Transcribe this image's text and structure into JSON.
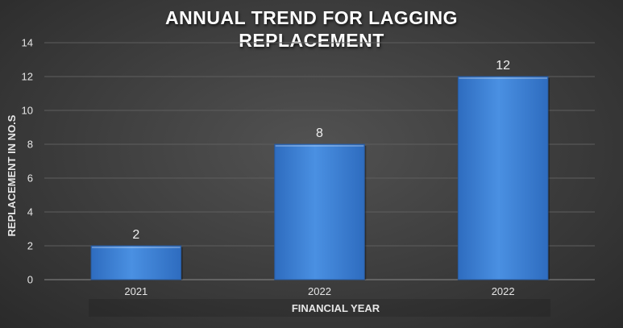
{
  "chart_data": {
    "type": "bar",
    "title_lines": [
      "ANNUAL TREND FOR LAGGING",
      "REPLACEMENT"
    ],
    "categories": [
      "2021",
      "2022",
      "2022"
    ],
    "values": [
      2,
      8,
      12
    ],
    "xlabel": "FINANCIAL YEAR",
    "ylabel": "REPLACEMENT  IN NO.S",
    "ylim": [
      0,
      14
    ],
    "yticks": [
      0,
      2,
      4,
      6,
      8,
      10,
      12,
      14
    ],
    "grid": true,
    "legend": "none",
    "colors": {
      "bar_light": "#4a90e2",
      "bar_dark": "#2e6cbf",
      "grid": "#5e5e5e"
    }
  }
}
